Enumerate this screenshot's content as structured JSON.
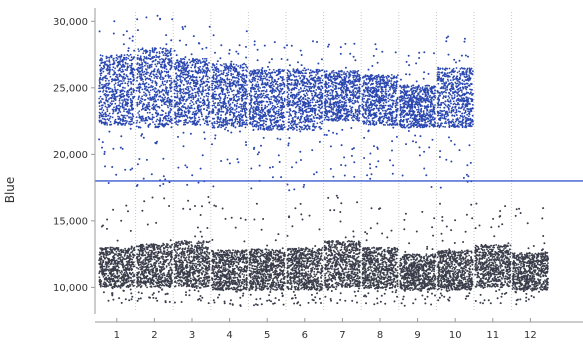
{
  "chart_data": {
    "type": "scatter",
    "ylabel": "Blue",
    "ylim": [
      8000,
      31000
    ],
    "y_ticks": [
      {
        "value": 10000,
        "label": "10,000"
      },
      {
        "value": 15000,
        "label": "15,000"
      },
      {
        "value": 20000,
        "label": "20,000"
      },
      {
        "value": 25000,
        "label": "25,000"
      },
      {
        "value": 30000,
        "label": "30,000"
      }
    ],
    "x_categories": [
      "1",
      "2",
      "3",
      "4",
      "5",
      "6",
      "7",
      "8",
      "9",
      "10",
      "11",
      "12"
    ],
    "threshold": 18000,
    "grid": "vertical dashed separators between groups",
    "series": [
      {
        "color": "#2a47b0",
        "groups": [
          {
            "category": "1",
            "min": 22200,
            "max": 27500,
            "center": 24800
          },
          {
            "category": "2",
            "min": 22000,
            "max": 28000,
            "center": 25000
          },
          {
            "category": "3",
            "min": 22200,
            "max": 27200,
            "center": 24600
          },
          {
            "category": "4",
            "min": 22000,
            "max": 26800,
            "center": 24300
          },
          {
            "category": "5",
            "min": 21800,
            "max": 26400,
            "center": 24100
          },
          {
            "category": "6",
            "min": 21800,
            "max": 26400,
            "center": 24100
          },
          {
            "category": "7",
            "min": 22500,
            "max": 26300,
            "center": 24500
          },
          {
            "category": "8",
            "min": 22200,
            "max": 26000,
            "center": 24100
          },
          {
            "category": "9",
            "min": 22000,
            "max": 25200,
            "center": 23600
          },
          {
            "category": "10",
            "min": 22000,
            "max": 26500,
            "center": 24200
          }
        ]
      },
      {
        "color": "#3a3d4a",
        "groups": [
          {
            "category": "1",
            "min": 10000,
            "max": 13000,
            "center": 11500
          },
          {
            "category": "2",
            "min": 10000,
            "max": 13300,
            "center": 11600
          },
          {
            "category": "3",
            "min": 10000,
            "max": 13500,
            "center": 11700
          },
          {
            "category": "4",
            "min": 9800,
            "max": 12800,
            "center": 11300
          },
          {
            "category": "5",
            "min": 9800,
            "max": 12900,
            "center": 11300
          },
          {
            "category": "6",
            "min": 9800,
            "max": 13000,
            "center": 11400
          },
          {
            "category": "7",
            "min": 10000,
            "max": 13500,
            "center": 11700
          },
          {
            "category": "8",
            "min": 9900,
            "max": 13000,
            "center": 11400
          },
          {
            "category": "9",
            "min": 9800,
            "max": 12500,
            "center": 11100
          },
          {
            "category": "10",
            "min": 9800,
            "max": 12800,
            "center": 11300
          },
          {
            "category": "11",
            "min": 10000,
            "max": 13200,
            "center": 11500
          },
          {
            "category": "12",
            "min": 9800,
            "max": 12600,
            "center": 11200
          }
        ]
      }
    ]
  },
  "colors": {
    "threshold_line": "#3a5bd0",
    "axis": "#999999",
    "separator": "#c8c8c8"
  }
}
